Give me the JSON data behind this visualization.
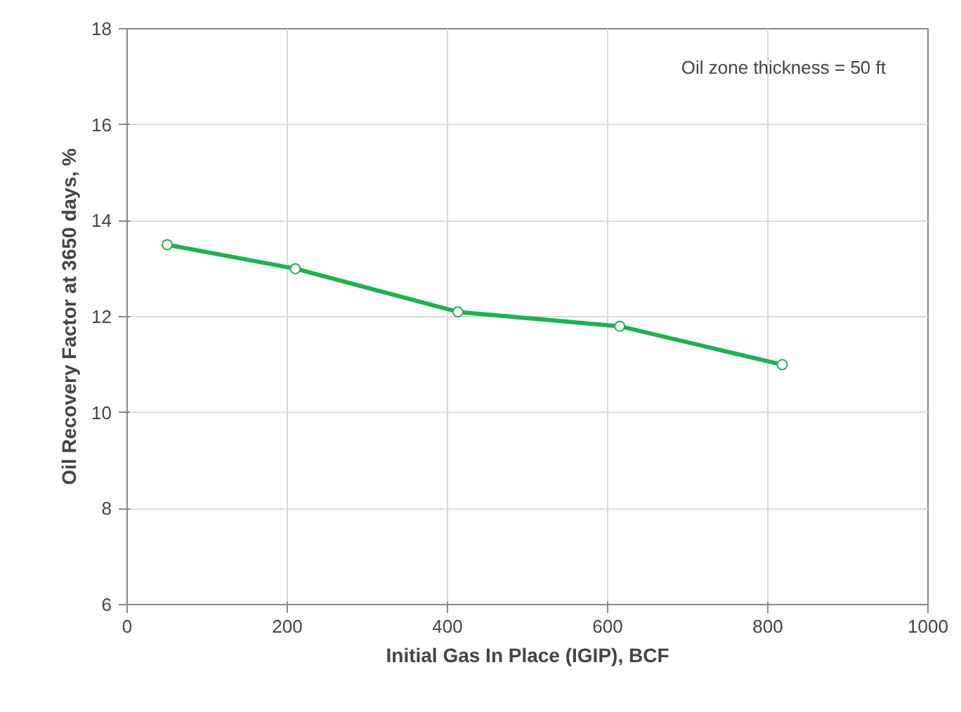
{
  "chart_data": {
    "type": "line",
    "xlabel": "Initial Gas In Place (IGIP), BCF",
    "ylabel": "Oil Recovery Factor at 3650 days, %",
    "x": [
      50,
      210,
      413,
      615,
      818
    ],
    "series": [
      {
        "color": "#1fb04f",
        "values": [
          13.5,
          13.0,
          12.1,
          11.8,
          11.0
        ]
      }
    ],
    "xlim": [
      0,
      1000
    ],
    "xticks": [
      0,
      200,
      400,
      600,
      800,
      1000
    ],
    "ylim": [
      6,
      18
    ],
    "yticks": [
      6,
      8,
      10,
      12,
      14,
      16,
      18
    ],
    "grid": true,
    "marker": "circle",
    "line_style": "solid",
    "annotations": [
      "Oil zone thickness = 50 ft"
    ]
  }
}
